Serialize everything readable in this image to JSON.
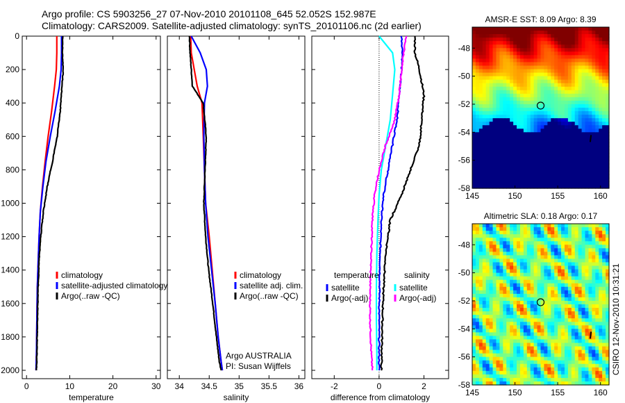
{
  "header": {
    "line1": "Argo profile: CS 5903256_27 07-Nov-2010 20101108_645 52.052S 152.987E",
    "line2": "Climatology: CARS2009. Satellite-adjusted climatology: synTS_20101106.nc (2d earlier)"
  },
  "stamp": "CSIRO 12-Nov-2010 10:31:21",
  "colors": {
    "climatology": "#ff0000",
    "satellite": "#0000ff",
    "argo": "#000000",
    "sat_diff_T": "#00e5e5",
    "argo_diff_T": "#0000ff",
    "sat_diff_S": "#00ffff",
    "argo_diff_S": "#ff00ff"
  },
  "chart_data": [
    {
      "type": "line",
      "xlabel": "temperature",
      "xlim": [
        -1,
        31
      ],
      "xticks": [
        0,
        10,
        20,
        30
      ],
      "ylim": [
        2050,
        0
      ],
      "yticks": [
        0,
        200,
        400,
        600,
        800,
        1000,
        1200,
        1400,
        1600,
        1800,
        2000
      ],
      "legend": [
        "climatology",
        "satellite-adjusted climatology",
        "Argo(..raw -QC)"
      ],
      "series": [
        {
          "name": "climatology",
          "color": "#ff0000",
          "x": [
            7.0,
            7.0,
            6.9,
            6.5,
            5.8,
            5.0,
            4.3,
            3.7,
            3.2,
            2.9,
            2.7,
            2.5,
            2.4,
            2.3,
            2.2
          ],
          "y": [
            0,
            100,
            200,
            300,
            450,
            600,
            750,
            900,
            1050,
            1200,
            1350,
            1500,
            1700,
            1900,
            2000
          ]
        },
        {
          "name": "satellite-adjusted climatology",
          "color": "#0000ff",
          "x": [
            8.1,
            8.1,
            8.0,
            7.6,
            6.6,
            5.5,
            4.5,
            3.8,
            3.2,
            2.9,
            2.7,
            2.5,
            2.4,
            2.3,
            2.2
          ],
          "y": [
            0,
            100,
            200,
            300,
            450,
            600,
            750,
            900,
            1050,
            1200,
            1350,
            1500,
            1700,
            1900,
            2000
          ]
        },
        {
          "name": "Argo(..raw -QC)",
          "color": "#000000",
          "x": [
            8.4,
            8.3,
            8.5,
            8.2,
            7.8,
            7.1,
            6.0,
            4.8,
            3.9,
            3.3,
            2.9,
            2.7,
            2.5,
            2.4,
            2.3
          ],
          "y": [
            0,
            100,
            200,
            300,
            450,
            600,
            750,
            900,
            1050,
            1200,
            1350,
            1500,
            1700,
            1900,
            2000
          ]
        }
      ]
    },
    {
      "type": "line",
      "xlabel": "salinity",
      "xlim": [
        33.8,
        36.1
      ],
      "xticks": [
        34,
        34.5,
        35,
        35.5,
        36
      ],
      "xtick_labels": [
        "34",
        "34.5",
        "35",
        "35.5",
        "36"
      ],
      "ylim": [
        2050,
        0
      ],
      "legend": [
        "climatology",
        "satellite adj. clim.",
        "Argo(..raw -QC)"
      ],
      "annotation": [
        "Argo AUSTRALIA",
        "PI: Susan Wijffels"
      ],
      "series": [
        {
          "name": "climatology",
          "color": "#ff0000",
          "x": [
            34.19,
            34.2,
            34.25,
            34.3,
            34.38,
            34.4,
            34.42,
            34.43,
            34.44,
            34.5,
            34.55,
            34.6,
            34.65,
            34.7,
            34.72
          ],
          "y": [
            0,
            100,
            200,
            300,
            400,
            600,
            800,
            900,
            1000,
            1200,
            1400,
            1600,
            1800,
            1950,
            2000
          ]
        },
        {
          "name": "satellite adj. clim.",
          "color": "#0000ff",
          "x": [
            34.2,
            34.35,
            34.45,
            34.47,
            34.42,
            34.41,
            34.42,
            34.43,
            34.44,
            34.48,
            34.54,
            34.6,
            34.65,
            34.7,
            34.72
          ],
          "y": [
            0,
            100,
            200,
            300,
            400,
            600,
            800,
            900,
            1000,
            1200,
            1400,
            1600,
            1800,
            1950,
            2000
          ]
        },
        {
          "name": "Argo(..raw -QC)",
          "color": "#000000",
          "x": [
            34.17,
            34.18,
            34.2,
            34.22,
            34.4,
            34.45,
            34.43,
            34.42,
            34.41,
            34.44,
            34.49,
            34.56,
            34.62,
            34.67,
            34.7
          ],
          "y": [
            0,
            100,
            200,
            300,
            400,
            600,
            800,
            900,
            1000,
            1200,
            1400,
            1600,
            1800,
            1950,
            2000
          ]
        }
      ]
    },
    {
      "type": "line",
      "xlabel": "difference from climatology",
      "xlim": [
        -3,
        3.1
      ],
      "xticks": [
        -2,
        0,
        2
      ],
      "ylim": [
        2050,
        0
      ],
      "legend_left_title": "temperature",
      "legend_right_title": "salinity",
      "legend_left": [
        "satellite",
        "Argo(-adj)"
      ],
      "legend_right": [
        "satellite",
        "Argo(-adj)"
      ],
      "series": [
        {
          "name": "temperature satellite",
          "color": "#0000ff",
          "x": [
            1.0,
            1.05,
            1.0,
            0.9,
            0.8,
            0.6,
            0.4,
            0.2,
            0.1,
            0.05,
            0.02,
            0.0,
            0.0,
            0.0
          ],
          "y": [
            0,
            100,
            200,
            350,
            500,
            650,
            800,
            950,
            1100,
            1300,
            1500,
            1700,
            1900,
            2000
          ]
        },
        {
          "name": "temperature Argo(-adj)",
          "color": "#000000",
          "x": [
            1.6,
            1.6,
            1.8,
            2.0,
            1.9,
            1.8,
            1.4,
            1.0,
            0.5,
            0.3,
            0.2,
            0.15,
            0.12,
            0.1
          ],
          "y": [
            0,
            100,
            200,
            350,
            500,
            650,
            800,
            950,
            1100,
            1300,
            1500,
            1700,
            1900,
            2000
          ]
        },
        {
          "name": "salinity satellite",
          "color": "#00ffff",
          "x": [
            0.0,
            0.6,
            0.7,
            0.6,
            0.5,
            0.3,
            0.1,
            0.0,
            -0.05,
            -0.1,
            -0.12,
            -0.12,
            -0.1,
            -0.1
          ],
          "y": [
            0,
            100,
            200,
            350,
            500,
            650,
            800,
            950,
            1100,
            1300,
            1500,
            1700,
            1900,
            2000
          ]
        },
        {
          "name": "salinity Argo(-adj)",
          "color": "#ff00ff",
          "x": [
            1.2,
            1.1,
            1.0,
            0.9,
            0.7,
            0.3,
            0.0,
            -0.2,
            -0.3,
            -0.35,
            -0.4,
            -0.4,
            -0.35,
            -0.3
          ],
          "y": [
            0,
            100,
            200,
            350,
            500,
            650,
            800,
            950,
            1100,
            1300,
            1500,
            1700,
            1900,
            2000
          ]
        }
      ]
    },
    {
      "type": "heatmap",
      "title": "AMSR-E SST: 8.09  Argo: 8.39",
      "xlim": [
        145,
        161
      ],
      "ylim": [
        -58,
        -46.5
      ],
      "xticks": [
        145,
        150,
        155,
        160
      ],
      "yticks": [
        -48,
        -50,
        -52,
        -54,
        -56,
        -58
      ],
      "profile_marker": {
        "lon": 153,
        "lat": -52.1
      }
    },
    {
      "type": "heatmap",
      "title": "Altimetric SLA: 0.18  Argo: 0.17",
      "xlim": [
        145,
        161
      ],
      "ylim": [
        -58,
        -46.5
      ],
      "xticks": [
        145,
        150,
        155,
        160
      ],
      "yticks": [
        -48,
        -50,
        -52,
        -54,
        -56,
        -58
      ],
      "profile_marker": {
        "lon": 153,
        "lat": -52.1
      }
    }
  ]
}
